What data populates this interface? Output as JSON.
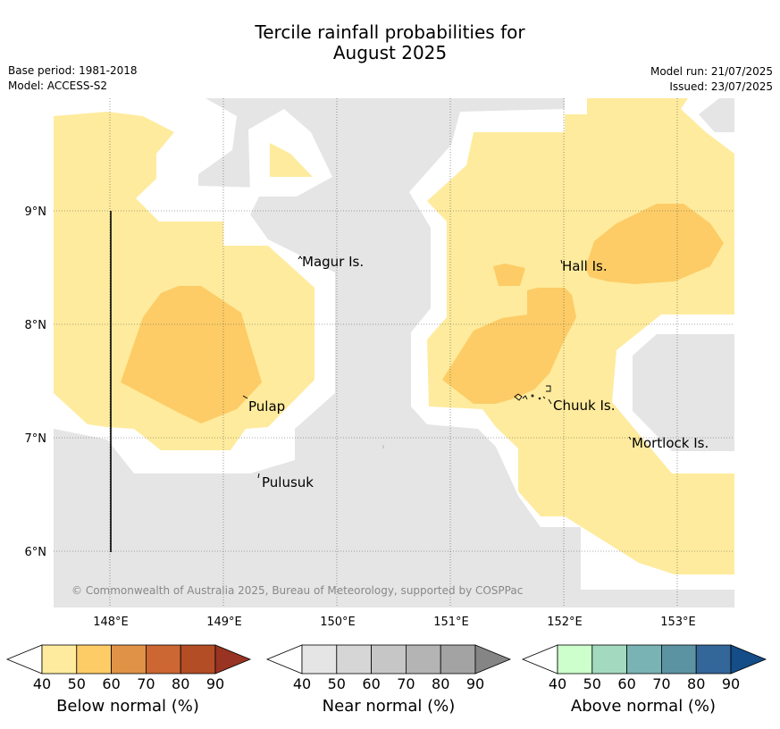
{
  "title": {
    "line1": "Tercile rainfall probabilities for",
    "line2": "August 2025"
  },
  "meta": {
    "base_period": "Base period: 1981-2018",
    "model": "Model: ACCESS-S2",
    "model_run": "Model run: 21/07/2025",
    "issued": "Issued: 23/07/2025"
  },
  "map": {
    "lon_ticks": [
      "148°E",
      "149°E",
      "150°E",
      "151°E",
      "152°E",
      "153°E"
    ],
    "lat_ticks": [
      "9°N",
      "8°N",
      "7°N",
      "6°N"
    ],
    "places": {
      "magur": "Magur Is.",
      "hall": "Hall Is.",
      "pulap": "Pulap",
      "chuuk": "Chuuk Is.",
      "mortlock": "Mortlock Is.",
      "pulusuk": "Pulusuk"
    },
    "copyright": "© Commonwealth of Australia 2025, Bureau of Meteorology, supported by COSPPac",
    "colors": {
      "near_normal": "#e5e5e5",
      "below_50": "#feeb9d",
      "below_60": "#fdcc66"
    }
  },
  "colorbars": {
    "below": {
      "label": "Below normal (%)",
      "ticks": [
        "40",
        "50",
        "60",
        "70",
        "80",
        "90"
      ],
      "colors": [
        "#ffffff",
        "#feeb9d",
        "#fdcc66",
        "#e09346",
        "#cc6633",
        "#b34d26",
        "#993322"
      ]
    },
    "near": {
      "label": "Near normal (%)",
      "ticks": [
        "40",
        "50",
        "60",
        "70",
        "80",
        "90"
      ],
      "colors": [
        "#ffffff",
        "#e5e5e5",
        "#d6d6d6",
        "#c6c6c6",
        "#b4b4b4",
        "#a3a3a3",
        "#858585"
      ]
    },
    "above": {
      "label": "Above normal (%)",
      "ticks": [
        "40",
        "50",
        "60",
        "70",
        "80",
        "90"
      ],
      "colors": [
        "#ffffff",
        "#ccffcc",
        "#a3d9bf",
        "#7ab3b3",
        "#5c93a3",
        "#336699",
        "#144d88"
      ]
    }
  }
}
